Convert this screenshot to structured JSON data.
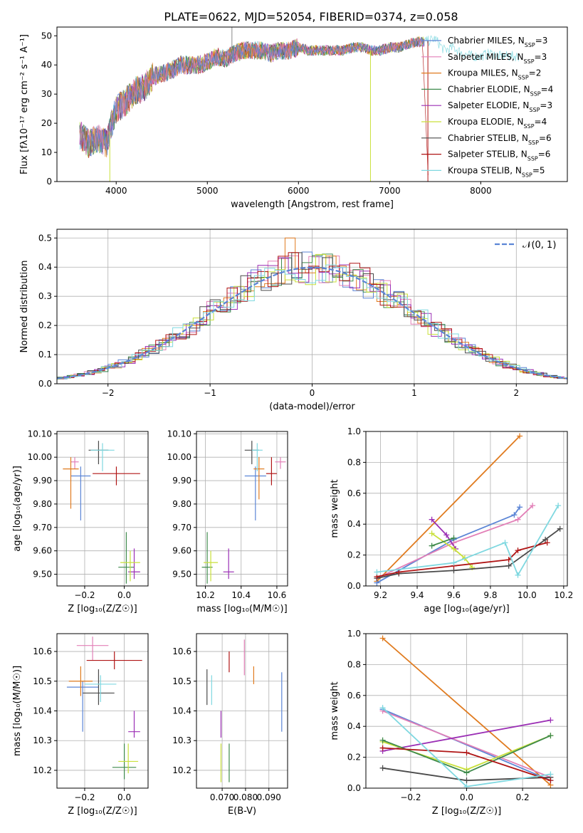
{
  "title": "PLATE=0622, MJD=52054, FIBERID=0374, z=0.058",
  "colors": {
    "chab_miles": "#5b85d6",
    "salp_miles": "#e27fb7",
    "krou_miles": "#e07b1f",
    "chab_elodie": "#3f8a4c",
    "salp_elodie": "#9b2fb5",
    "krou_elodie": "#c9e03a",
    "chab_stelib": "#4a4a4a",
    "salp_stelib": "#b01515",
    "krou_stelib": "#7fd8e0",
    "normal": "#5b85d6"
  },
  "chart_data": [
    {
      "id": "spectrum",
      "type": "line",
      "xlabel": "wavelength [Angstrom, rest frame]",
      "ylabel": "Flux [fλ10⁻¹⁷ erg cm⁻² s⁻¹ A⁻¹]",
      "xlim": [
        3350,
        8950
      ],
      "ylim": [
        0,
        53
      ],
      "xticks": [
        4000,
        5000,
        6000,
        7000,
        8000
      ],
      "yticks": [
        0,
        10,
        20,
        30,
        40,
        50
      ],
      "grid": false,
      "legend_position": "right",
      "continuum": {
        "x": [
          3600,
          3700,
          3800,
          3900,
          3950,
          4000,
          4100,
          4200,
          4300,
          4400,
          4500,
          4600,
          4700,
          4800,
          4900,
          5000,
          5100,
          5200,
          5300,
          5400,
          5500,
          5600,
          5700,
          5800,
          5900,
          6000,
          6100,
          6200,
          6300,
          6400,
          6500,
          6600,
          6700,
          6800,
          6900,
          7000,
          7100,
          7200,
          7300,
          7400,
          7500,
          7600,
          7700,
          7800,
          7900,
          8000,
          8100,
          8200,
          8300,
          8400,
          8500,
          8600,
          8700,
          8800
        ],
        "y": [
          16,
          13,
          15,
          13,
          20,
          25,
          27,
          31,
          32,
          36,
          37,
          38,
          40,
          40,
          40,
          41,
          43,
          42,
          44,
          45,
          45,
          45,
          44,
          45,
          45,
          46,
          45,
          45,
          45,
          45,
          45,
          46,
          46,
          45,
          45,
          46,
          46,
          47,
          48,
          48,
          49,
          45,
          46,
          44,
          43,
          43,
          44,
          43,
          43,
          43,
          42,
          42,
          42,
          42
        ]
      },
      "spikes": [
        {
          "x": 5270,
          "y": 53
        },
        {
          "x": 3930,
          "y": 0
        },
        {
          "x": 6790,
          "y": 0
        },
        {
          "x": 7420,
          "y": 0
        }
      ],
      "series": [
        {
          "key": "chab_miles",
          "legend": "Chabrier MILES, N",
          "n": "3"
        },
        {
          "key": "salp_miles",
          "legend": "Salpeter MILES, N",
          "n": "3"
        },
        {
          "key": "krou_miles",
          "legend": "Kroupa MILES, N",
          "n": "2"
        },
        {
          "key": "chab_elodie",
          "legend": "Chabrier ELODIE, N",
          "n": "4"
        },
        {
          "key": "salp_elodie",
          "legend": "Salpeter ELODIE, N",
          "n": "3"
        },
        {
          "key": "krou_elodie",
          "legend": "Kroupa ELODIE, N",
          "n": "4"
        },
        {
          "key": "chab_stelib",
          "legend": "Chabrier STELIB, N",
          "n": "6"
        },
        {
          "key": "salp_stelib",
          "legend": "Salpeter STELIB, N",
          "n": "6"
        },
        {
          "key": "krou_stelib",
          "legend": "Kroupa STELIB, N",
          "n": "5"
        }
      ],
      "legend_sub": "SSP"
    },
    {
      "id": "residuals",
      "type": "histogram",
      "xlabel": "(data-model)/error",
      "ylabel": "Normed distribution",
      "xlim": [
        -2.5,
        2.5
      ],
      "ylim": [
        0,
        0.53
      ],
      "xticks": [
        -2,
        -1,
        0,
        1,
        2
      ],
      "yticks": [
        0.0,
        0.1,
        0.2,
        0.3,
        0.4,
        0.5
      ],
      "grid": true,
      "legend_position": "top-right",
      "legend": "𝒩(0, 1)",
      "bin_width": 0.1,
      "peak_heights": [
        0.45,
        0.44,
        0.5,
        0.47,
        0.46,
        0.49,
        0.44,
        0.48,
        0.47
      ]
    },
    {
      "id": "age_vs_Z",
      "type": "errorbar",
      "xlabel": "Z [log₁₀(Z/Z☉)]",
      "ylabel": "age  [log₁₀(age/yr)]",
      "xlim": [
        -0.34,
        0.12
      ],
      "ylim": [
        9.45,
        10.11
      ],
      "xticks": [
        -0.2,
        0.0
      ],
      "yticks": [
        9.5,
        9.6,
        9.7,
        9.8,
        9.9,
        10.0,
        10.1
      ],
      "grid": true,
      "points": [
        {
          "key": "chab_miles",
          "x": -0.22,
          "xerr": 0.05,
          "y": 9.92,
          "yerr": [
            0.19,
            0.04
          ]
        },
        {
          "key": "salp_miles",
          "x": -0.25,
          "xerr": 0.02,
          "y": 9.98,
          "yerr": [
            0.03,
            0.02
          ]
        },
        {
          "key": "krou_miles",
          "x": -0.27,
          "xerr": 0.04,
          "y": 9.95,
          "yerr": [
            0.17,
            0.05
          ]
        },
        {
          "key": "chab_elodie",
          "x": 0.01,
          "xerr": 0.04,
          "y": 9.53,
          "yerr": [
            0.07,
            0.15
          ]
        },
        {
          "key": "salp_elodie",
          "x": 0.05,
          "xerr": 0.03,
          "y": 9.51,
          "yerr": [
            0.03,
            0.1
          ]
        },
        {
          "key": "krou_elodie",
          "x": 0.03,
          "xerr": 0.05,
          "y": 9.55,
          "yerr": [
            0.08,
            0.05
          ]
        },
        {
          "key": "chab_stelib",
          "x": -0.13,
          "xerr": 0.05,
          "y": 10.03,
          "yerr": [
            0.06,
            0.04
          ]
        },
        {
          "key": "salp_stelib",
          "x": -0.04,
          "xerr": 0.12,
          "y": 9.93,
          "yerr": [
            0.05,
            0.03
          ]
        },
        {
          "key": "krou_stelib",
          "x": -0.11,
          "xerr": 0.06,
          "y": 10.03,
          "yerr": [
            0.09,
            0.03
          ]
        }
      ]
    },
    {
      "id": "age_vs_mass",
      "type": "errorbar",
      "xlabel": "mass [log₁₀(M/M☉)]",
      "ylabel": "",
      "xlim": [
        10.15,
        10.66
      ],
      "ylim": [
        9.45,
        10.11
      ],
      "xticks": [
        10.2,
        10.4,
        10.6
      ],
      "yticks": [
        9.5,
        9.6,
        9.7,
        9.8,
        9.9,
        10.0,
        10.1
      ],
      "grid": true,
      "points": [
        {
          "key": "chab_miles",
          "x": 10.48,
          "xerr": 0.06,
          "y": 9.92,
          "yerr": [
            0.19,
            0.04
          ]
        },
        {
          "key": "salp_miles",
          "x": 10.62,
          "xerr": 0.03,
          "y": 9.98,
          "yerr": [
            0.03,
            0.02
          ]
        },
        {
          "key": "krou_miles",
          "x": 10.5,
          "xerr": 0.03,
          "y": 9.95,
          "yerr": [
            0.13,
            0.05
          ]
        },
        {
          "key": "chab_elodie",
          "x": 10.21,
          "xerr": 0.03,
          "y": 9.53,
          "yerr": [
            0.07,
            0.15
          ]
        },
        {
          "key": "salp_elodie",
          "x": 10.33,
          "xerr": 0.03,
          "y": 9.51,
          "yerr": [
            0.03,
            0.1
          ]
        },
        {
          "key": "krou_elodie",
          "x": 10.23,
          "xerr": 0.04,
          "y": 9.55,
          "yerr": [
            0.08,
            0.05
          ]
        },
        {
          "key": "chab_stelib",
          "x": 10.46,
          "xerr": 0.04,
          "y": 10.03,
          "yerr": [
            0.06,
            0.04
          ]
        },
        {
          "key": "salp_stelib",
          "x": 10.57,
          "xerr": 0.03,
          "y": 9.93,
          "yerr": [
            0.05,
            0.07
          ]
        },
        {
          "key": "krou_stelib",
          "x": 10.49,
          "xerr": 0.03,
          "y": 10.03,
          "yerr": [
            0.09,
            0.03
          ]
        }
      ]
    },
    {
      "id": "weight_vs_age",
      "type": "line",
      "xlabel": "age  [log₁₀(age/yr)]",
      "ylabel": "mass weight",
      "xlim": [
        9.12,
        10.22
      ],
      "ylim": [
        0,
        1.0
      ],
      "xticks": [
        9.2,
        9.4,
        9.6,
        9.8,
        10.0,
        10.2
      ],
      "yticks": [
        0.0,
        0.2,
        0.4,
        0.6,
        0.8,
        1.0
      ],
      "grid": true,
      "series": [
        {
          "key": "krou_miles",
          "x": [
            9.18,
            9.96
          ],
          "y": [
            0.03,
            0.97
          ]
        },
        {
          "key": "chab_miles",
          "x": [
            9.18,
            9.6,
            9.93,
            9.96
          ],
          "y": [
            0.02,
            0.3,
            0.46,
            0.51
          ]
        },
        {
          "key": "salp_miles",
          "x": [
            9.18,
            9.6,
            9.95,
            10.03
          ],
          "y": [
            0.05,
            0.28,
            0.43,
            0.52
          ]
        },
        {
          "key": "salp_elodie",
          "x": [
            9.48,
            9.56,
            9.61
          ],
          "y": [
            0.43,
            0.33,
            0.24
          ]
        },
        {
          "key": "krou_elodie",
          "x": [
            9.48,
            9.6,
            9.66,
            9.7
          ],
          "y": [
            0.34,
            0.24,
            0.18,
            0.12
          ]
        },
        {
          "key": "chab_elodie",
          "x": [
            9.48,
            9.6
          ],
          "y": [
            0.26,
            0.31
          ]
        },
        {
          "key": "chab_stelib",
          "x": [
            9.18,
            9.3,
            9.6,
            9.9,
            10.1,
            10.18
          ],
          "y": [
            0.05,
            0.08,
            0.1,
            0.13,
            0.3,
            0.37
          ]
        },
        {
          "key": "salp_stelib",
          "x": [
            9.18,
            9.3,
            9.6,
            9.9,
            9.95,
            10.11
          ],
          "y": [
            0.06,
            0.09,
            0.13,
            0.17,
            0.23,
            0.28
          ]
        },
        {
          "key": "krou_stelib",
          "x": [
            9.18,
            9.6,
            9.88,
            9.95,
            10.17
          ],
          "y": [
            0.09,
            0.15,
            0.28,
            0.07,
            0.52
          ]
        }
      ]
    },
    {
      "id": "mass_vs_Z",
      "type": "errorbar",
      "xlabel": "Z [log₁₀(Z/Z☉)]",
      "ylabel": "mass [log₁₀(M/M☉)]",
      "xlim": [
        -0.34,
        0.12
      ],
      "ylim": [
        10.14,
        10.66
      ],
      "xticks": [
        -0.2,
        0.0
      ],
      "yticks": [
        10.2,
        10.3,
        10.4,
        10.5,
        10.6
      ],
      "grid": true,
      "points": [
        {
          "key": "chab_miles",
          "x": -0.21,
          "xerr": 0.08,
          "y": 10.48,
          "yerr": [
            0.15,
            0.02
          ]
        },
        {
          "key": "salp_miles",
          "x": -0.16,
          "xerr": 0.08,
          "y": 10.62,
          "yerr": [
            0.05,
            0.03
          ]
        },
        {
          "key": "krou_miles",
          "x": -0.22,
          "xerr": 0.06,
          "y": 10.5,
          "yerr": [
            0.05,
            0.05
          ]
        },
        {
          "key": "chab_elodie",
          "x": 0.0,
          "xerr": 0.06,
          "y": 10.21,
          "yerr": [
            0.04,
            0.08
          ]
        },
        {
          "key": "salp_elodie",
          "x": 0.05,
          "xerr": 0.03,
          "y": 10.33,
          "yerr": [
            0.02,
            0.07
          ]
        },
        {
          "key": "krou_elodie",
          "x": 0.02,
          "xerr": 0.05,
          "y": 10.23,
          "yerr": [
            0.04,
            0.06
          ]
        },
        {
          "key": "chab_stelib",
          "x": -0.13,
          "xerr": 0.08,
          "y": 10.46,
          "yerr": [
            0.04,
            0.08
          ]
        },
        {
          "key": "salp_stelib",
          "x": -0.05,
          "xerr": 0.14,
          "y": 10.57,
          "yerr": [
            0.03,
            0.03
          ]
        },
        {
          "key": "krou_stelib",
          "x": -0.12,
          "xerr": 0.08,
          "y": 10.49,
          "yerr": [
            0.06,
            0.03
          ]
        }
      ]
    },
    {
      "id": "mass_vs_ebv",
      "type": "errorbar",
      "xlabel": "E(B-V)",
      "ylabel": "",
      "xlim": [
        0.059,
        0.098
      ],
      "ylim": [
        10.14,
        10.66
      ],
      "xticks": [
        0.07,
        0.08,
        0.09
      ],
      "yticks": [
        10.2,
        10.3,
        10.4,
        10.5,
        10.6
      ],
      "grid": true,
      "points": [
        {
          "key": "chab_miles",
          "x": 0.0955,
          "y": 10.48,
          "yerr": [
            0.15,
            0.05
          ]
        },
        {
          "key": "salp_miles",
          "x": 0.0795,
          "y": 10.58,
          "yerr": [
            0.06,
            0.06
          ]
        },
        {
          "key": "krou_miles",
          "x": 0.0835,
          "y": 10.52,
          "yerr": [
            0.03,
            0.03
          ]
        },
        {
          "key": "chab_elodie",
          "x": 0.073,
          "y": 10.23,
          "yerr": [
            0.07,
            0.06
          ]
        },
        {
          "key": "salp_elodie",
          "x": 0.0695,
          "y": 10.34,
          "yerr": [
            0.03,
            0.06
          ]
        },
        {
          "key": "krou_elodie",
          "x": 0.0695,
          "y": 10.22,
          "yerr": [
            0.06,
            0.07
          ]
        },
        {
          "key": "chab_stelib",
          "x": 0.0635,
          "y": 10.48,
          "yerr": [
            0.06,
            0.06
          ]
        },
        {
          "key": "salp_stelib",
          "x": 0.073,
          "y": 10.56,
          "yerr": [
            0.03,
            0.04
          ]
        },
        {
          "key": "krou_stelib",
          "x": 0.0655,
          "y": 10.47,
          "yerr": [
            0.05,
            0.05
          ]
        }
      ]
    },
    {
      "id": "weight_vs_Z",
      "type": "line",
      "xlabel": "Z [log₁₀(Z/Z☉)]",
      "ylabel": "mass weight",
      "xlim": [
        -0.36,
        0.36
      ],
      "ylim": [
        0,
        1.0
      ],
      "xticks": [
        -0.2,
        0.0,
        0.2
      ],
      "yticks": [
        0.0,
        0.2,
        0.4,
        0.6,
        0.8,
        1.0
      ],
      "grid": true,
      "series": [
        {
          "key": "krou_miles",
          "x": [
            -0.3,
            0.3
          ],
          "y": [
            0.97,
            0.02
          ]
        },
        {
          "key": "chab_miles",
          "x": [
            -0.3,
            0.3
          ],
          "y": [
            0.51,
            0.05
          ]
        },
        {
          "key": "salp_miles",
          "x": [
            -0.3,
            0.3
          ],
          "y": [
            0.5,
            0.07
          ]
        },
        {
          "key": "salp_elodie",
          "x": [
            -0.3,
            0.3
          ],
          "y": [
            0.24,
            0.44
          ]
        },
        {
          "key": "krou_elodie",
          "x": [
            -0.3,
            0.0,
            0.3
          ],
          "y": [
            0.3,
            0.12,
            0.34
          ]
        },
        {
          "key": "chab_elodie",
          "x": [
            -0.3,
            0.0,
            0.3
          ],
          "y": [
            0.31,
            0.1,
            0.34
          ]
        },
        {
          "key": "chab_stelib",
          "x": [
            -0.3,
            0.0,
            0.3
          ],
          "y": [
            0.13,
            0.05,
            0.07
          ]
        },
        {
          "key": "salp_stelib",
          "x": [
            -0.3,
            0.0,
            0.3
          ],
          "y": [
            0.26,
            0.23,
            0.05
          ]
        },
        {
          "key": "krou_stelib",
          "x": [
            -0.3,
            0.0,
            0.3
          ],
          "y": [
            0.52,
            0.01,
            0.09
          ]
        }
      ]
    }
  ]
}
